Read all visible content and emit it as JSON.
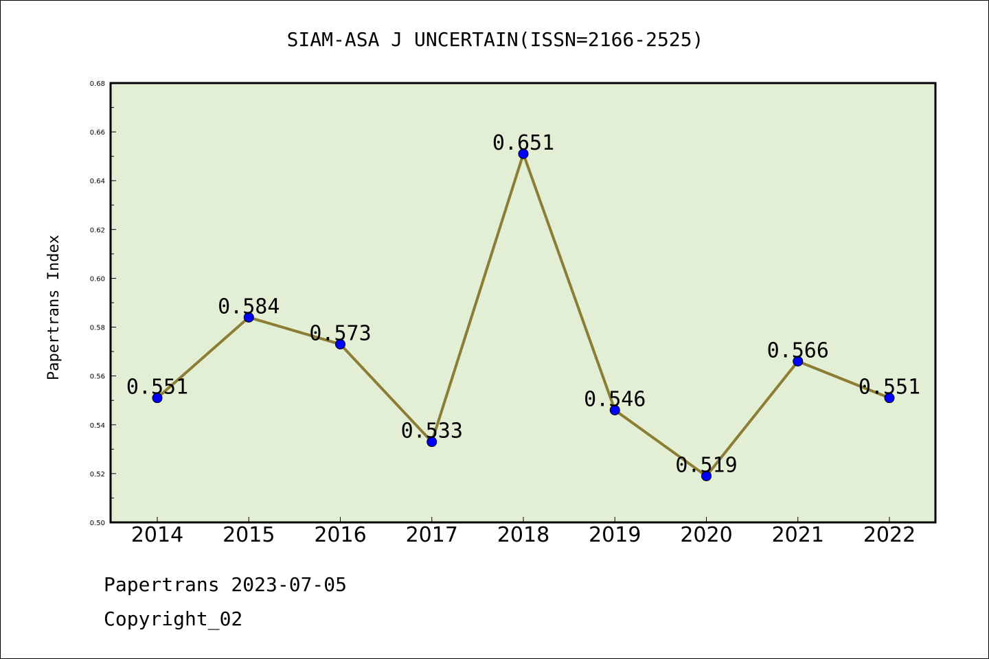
{
  "chart_data": {
    "type": "line",
    "title": "SIAM-ASA J UNCERTAIN(ISSN=2166-2525)",
    "xlabel": "",
    "ylabel": "Papertrans Index",
    "categories": [
      "2014",
      "2015",
      "2016",
      "2017",
      "2018",
      "2019",
      "2020",
      "2021",
      "2022"
    ],
    "series": [
      {
        "values": [
          0.551,
          0.584,
          0.573,
          0.533,
          0.651,
          0.546,
          0.519,
          0.566,
          0.551
        ],
        "labels": [
          "0.551",
          "0.584",
          "0.573",
          "0.533",
          "0.651",
          "0.546",
          "0.519",
          "0.566",
          "0.551"
        ]
      }
    ],
    "ylim": [
      0.5,
      0.68
    ],
    "yticks": [
      "0.50",
      "0.52",
      "0.54",
      "0.56",
      "0.58",
      "0.60",
      "0.62",
      "0.64",
      "0.66",
      "0.68"
    ],
    "grid": false,
    "legend": "none",
    "colors": {
      "plot_background": "#e2efd4",
      "line": "#8b7d33",
      "marker": "#0000ff"
    }
  },
  "footer": {
    "line1": "Papertrans 2023-07-05",
    "line2": "Copyright_02"
  }
}
